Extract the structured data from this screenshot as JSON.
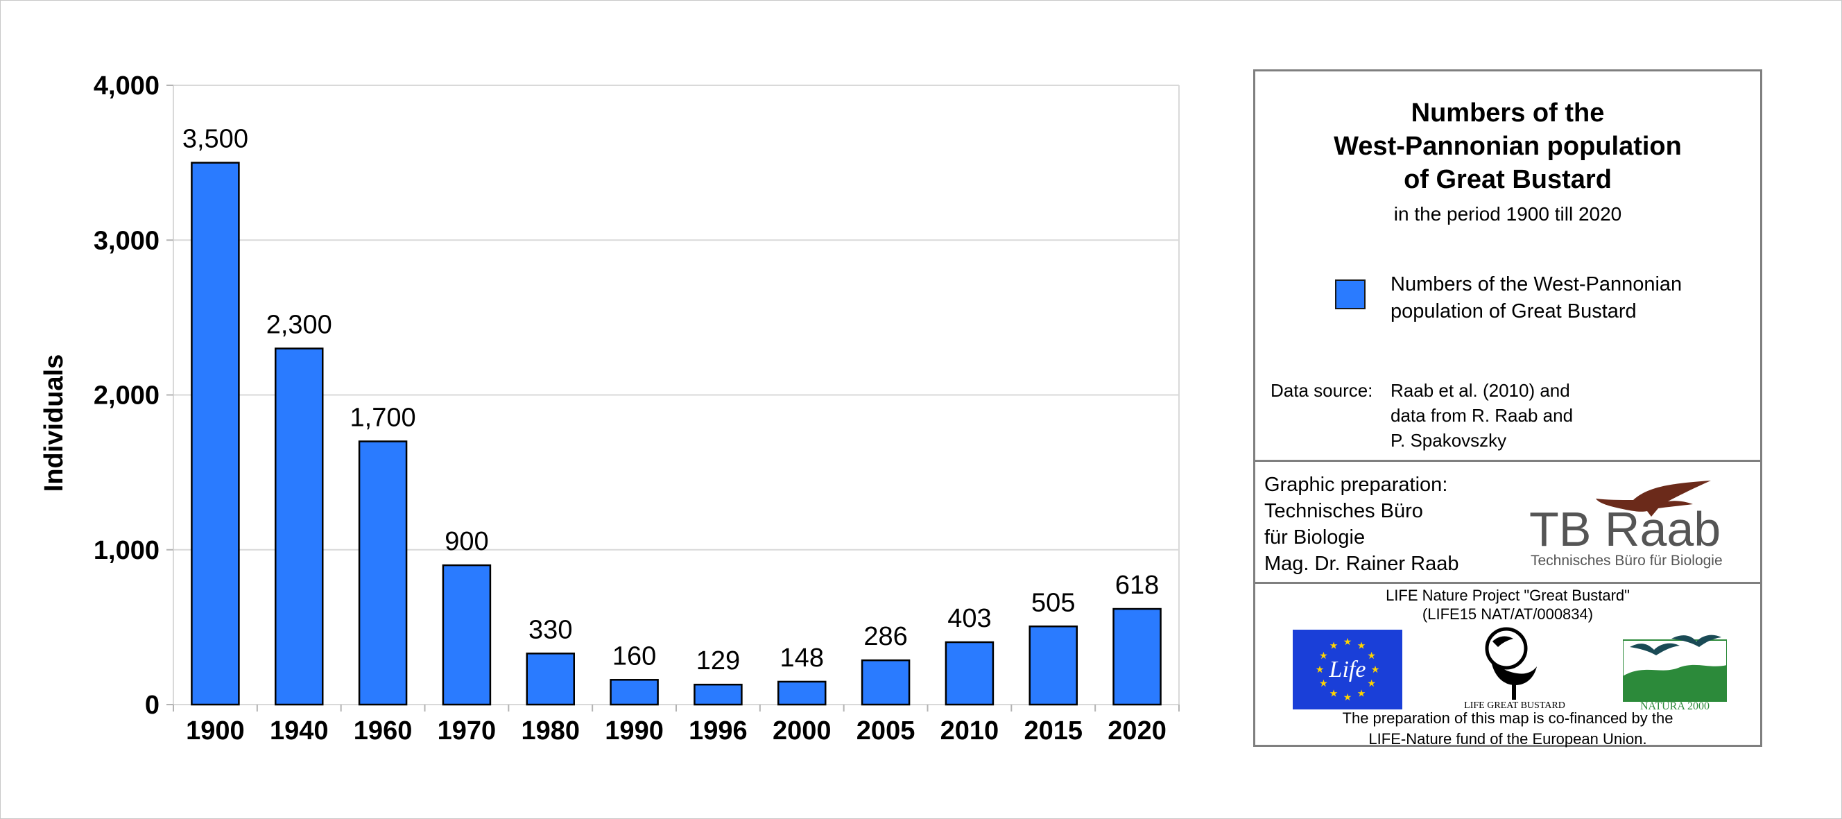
{
  "chart_data": {
    "type": "bar",
    "categories": [
      "1900",
      "1940",
      "1960",
      "1970",
      "1980",
      "1990",
      "1996",
      "2000",
      "2005",
      "2010",
      "2015",
      "2020"
    ],
    "series": [
      {
        "name": "Numbers of the West-Pannonian population of Great Bustard",
        "values": [
          3500,
          2300,
          1700,
          900,
          330,
          160,
          129,
          148,
          286,
          403,
          505,
          618
        ]
      }
    ],
    "data_labels": [
      "3,500",
      "2,300",
      "1,700",
      "900",
      "330",
      "160",
      "129",
      "148",
      "286",
      "403",
      "505",
      "618"
    ],
    "ylabel": "Individuals",
    "xlabel": "",
    "ylim": [
      0,
      4000
    ],
    "yticks": [
      0,
      1000,
      2000,
      3000,
      4000
    ],
    "ytick_labels": [
      "0",
      "1,000",
      "2,000",
      "3,000",
      "4,000"
    ],
    "grid": true,
    "bar_color": "#2a7bff",
    "legend_position": "right"
  },
  "panel": {
    "title_lines": [
      "Numbers of the",
      "West-Pannonian population",
      "of Great Bustard"
    ],
    "subtitle": "in the period 1900 till 2020",
    "legend_lines": [
      "Numbers of the West-Pannonian",
      "population of Great Bustard"
    ],
    "source_label": "Data source:",
    "source_lines": [
      "Raab et al. (2010) and",
      "data from R. Raab and",
      "P. Spakovszky"
    ],
    "prep_lines": [
      "Graphic preparation:",
      "Technisches Büro",
      "für Biologie",
      "Mag. Dr. Rainer Raab"
    ],
    "tb_logo": {
      "name": "TB Raab",
      "tagline": "Technisches Büro für Biologie"
    },
    "life_lines": [
      "LIFE Nature Project \"Great Bustard\"",
      "(LIFE15 NAT/AT/000834)"
    ],
    "eu_logo_text": "Life",
    "gb_logo_text": "LIFE GREAT BUSTARD",
    "natura_logo_text": "NATURA 2000",
    "cofin_lines": [
      "The preparation of this map is co-financed by the",
      "LIFE-Nature fund of the European Union."
    ]
  },
  "colors": {
    "bar": "#2a7bff",
    "grid": "#d9d9d9",
    "border": "#7f7f7f",
    "eu_blue": "#1a3fd8",
    "eu_star": "#ffd400",
    "natura_green": "#2c8a3a",
    "eagle": "#6b2a1a"
  }
}
